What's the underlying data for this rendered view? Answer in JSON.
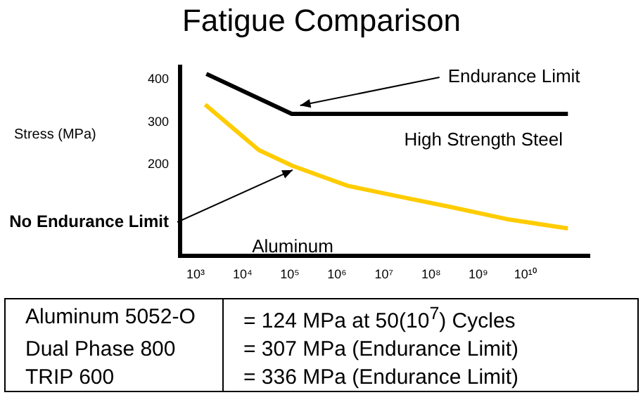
{
  "chart_data": {
    "type": "line",
    "title": "Fatigue Comparison",
    "ylabel": "Stress (MPa)",
    "log": "x",
    "grid": false,
    "xlim": [
      470,
      230000000000
    ],
    "xticks": [
      {
        "value": 1000,
        "label": "10³"
      },
      {
        "value": 10000,
        "label": "10⁴"
      },
      {
        "value": 100000,
        "label": "10⁵"
      },
      {
        "value": 1000000,
        "label": "10⁶"
      },
      {
        "value": 10000000,
        "label": "10⁷"
      },
      {
        "value": 100000000,
        "label": "10⁸"
      },
      {
        "value": 1000000000,
        "label": "10⁹"
      },
      {
        "value": 10000000000,
        "label": "10¹⁰"
      }
    ],
    "ylim": [
      -15,
      430
    ],
    "yticks": [
      200,
      300,
      400
    ],
    "series": [
      {
        "name": "High Strength Steel",
        "color": "#000000",
        "x": [
          1700,
          110000,
          80000000000
        ],
        "values": [
          413,
          319,
          319
        ]
      },
      {
        "name": "Aluminum",
        "color": "#ffcc00",
        "x": [
          1600,
          4700,
          22000,
          115000,
          1700000,
          21000000,
          270000000,
          4000000000,
          80000000000
        ],
        "values": [
          341,
          297,
          234,
          197,
          150,
          125,
          100,
          72,
          50
        ]
      }
    ],
    "annotations": [
      {
        "text": "Endurance Limit",
        "x": 110000,
        "y": 319
      },
      {
        "text": "No Endurance Limit",
        "x": 115000,
        "y": 197
      },
      "Aluminum 5052-O",
      "= 124 MPa at 50(10$^{7}$) Cycles",
      "Dual Phase 800",
      "= 307 MPa (Endurance Limit)",
      "TRIP 600",
      "= 336 MPa (Endurance Limit)"
    ]
  }
}
